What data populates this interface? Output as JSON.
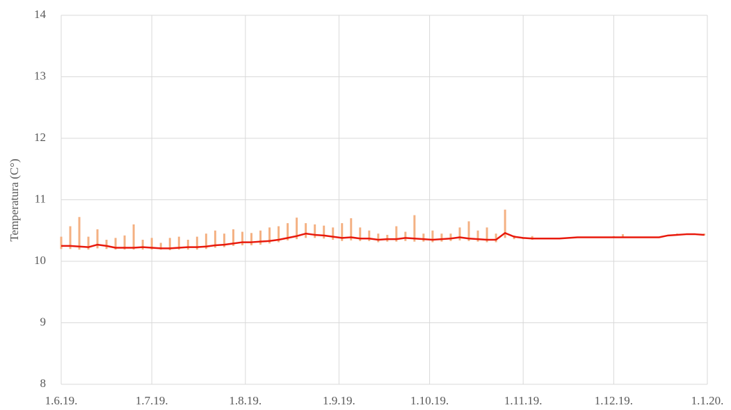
{
  "chart_data": {
    "type": "line",
    "y_label": "Temperatura (C°)",
    "x": [
      "2019-06-01",
      "2019-06-04",
      "2019-06-07",
      "2019-06-10",
      "2019-06-13",
      "2019-06-16",
      "2019-06-19",
      "2019-06-22",
      "2019-06-25",
      "2019-06-28",
      "2019-07-01",
      "2019-07-04",
      "2019-07-07",
      "2019-07-10",
      "2019-07-13",
      "2019-07-16",
      "2019-07-19",
      "2019-07-22",
      "2019-07-25",
      "2019-07-28",
      "2019-07-31",
      "2019-08-03",
      "2019-08-06",
      "2019-08-09",
      "2019-08-12",
      "2019-08-15",
      "2019-08-18",
      "2019-08-21",
      "2019-08-24",
      "2019-08-27",
      "2019-08-30",
      "2019-09-02",
      "2019-09-05",
      "2019-09-08",
      "2019-09-11",
      "2019-09-14",
      "2019-09-17",
      "2019-09-20",
      "2019-09-23",
      "2019-09-26",
      "2019-09-29",
      "2019-10-02",
      "2019-10-05",
      "2019-10-08",
      "2019-10-11",
      "2019-10-14",
      "2019-10-17",
      "2019-10-20",
      "2019-10-23",
      "2019-10-26",
      "2019-10-29",
      "2019-11-01",
      "2019-11-04",
      "2019-11-07",
      "2019-11-10",
      "2019-11-13",
      "2019-11-16",
      "2019-11-19",
      "2019-11-22",
      "2019-11-25",
      "2019-11-28",
      "2019-12-01",
      "2019-12-04",
      "2019-12-07",
      "2019-12-10",
      "2019-12-13",
      "2019-12-16",
      "2019-12-19",
      "2019-12-22",
      "2019-12-25",
      "2019-12-28",
      "2019-12-31"
    ],
    "values": [
      10.25,
      10.25,
      10.24,
      10.23,
      10.27,
      10.25,
      10.22,
      10.22,
      10.22,
      10.23,
      10.22,
      10.21,
      10.21,
      10.22,
      10.23,
      10.23,
      10.24,
      10.26,
      10.27,
      10.29,
      10.31,
      10.31,
      10.32,
      10.33,
      10.35,
      10.38,
      10.41,
      10.45,
      10.43,
      10.42,
      10.4,
      10.38,
      10.39,
      10.37,
      10.37,
      10.35,
      10.36,
      10.36,
      10.38,
      10.37,
      10.36,
      10.35,
      10.36,
      10.37,
      10.39,
      10.37,
      10.36,
      10.35,
      10.35,
      10.46,
      10.4,
      10.38,
      10.37,
      10.37,
      10.37,
      10.37,
      10.38,
      10.39,
      10.39,
      10.39,
      10.39,
      10.39,
      10.39,
      10.39,
      10.39,
      10.39,
      10.39,
      10.42,
      10.43,
      10.44,
      10.44,
      10.43
    ],
    "color": "#e8190c",
    "range_low": [
      10.2,
      10.2,
      10.19,
      10.19,
      10.21,
      10.2,
      10.19,
      10.19,
      10.19,
      10.19,
      10.19,
      10.19,
      10.18,
      10.19,
      10.19,
      10.19,
      10.2,
      10.22,
      10.23,
      10.25,
      10.26,
      10.26,
      10.27,
      10.29,
      10.31,
      10.34,
      10.36,
      10.38,
      10.38,
      10.37,
      10.35,
      10.33,
      10.34,
      10.33,
      10.33,
      10.31,
      10.32,
      10.32,
      10.33,
      10.32,
      10.32,
      10.31,
      10.32,
      10.33,
      10.34,
      10.33,
      10.32,
      10.31,
      10.31,
      10.38,
      10.36,
      10.36,
      10.35,
      10.36,
      10.36,
      10.36,
      10.37,
      10.38,
      10.38,
      10.38,
      10.38,
      10.38,
      10.38,
      10.38,
      10.38,
      10.38,
      10.38,
      10.41,
      10.42,
      10.43,
      10.43,
      10.42
    ],
    "range_high": [
      10.4,
      10.57,
      10.72,
      10.4,
      10.52,
      10.35,
      10.38,
      10.42,
      10.6,
      10.35,
      10.38,
      10.3,
      10.38,
      10.4,
      10.35,
      10.4,
      10.45,
      10.5,
      10.45,
      10.52,
      10.48,
      10.46,
      10.5,
      10.55,
      10.57,
      10.62,
      10.71,
      10.62,
      10.6,
      10.58,
      10.55,
      10.62,
      10.7,
      10.55,
      10.5,
      10.45,
      10.43,
      10.57,
      10.48,
      10.75,
      10.45,
      10.5,
      10.45,
      10.45,
      10.55,
      10.65,
      10.5,
      10.55,
      10.45,
      10.84,
      10.42,
      10.39,
      10.41,
      10.38,
      10.38,
      10.38,
      10.39,
      10.4,
      10.4,
      10.4,
      10.4,
      10.41,
      10.44,
      10.4,
      10.4,
      10.4,
      10.4,
      10.43,
      10.45,
      10.45,
      10.45,
      10.45
    ],
    "range_color": "#f4b183",
    "xlim": [
      "2019-06-01",
      "2020-01-01"
    ],
    "xticks": [
      {
        "value": "2019-06-01",
        "label": "1.6.19."
      },
      {
        "value": "2019-07-01",
        "label": "1.7.19."
      },
      {
        "value": "2019-08-01",
        "label": "1.8.19."
      },
      {
        "value": "2019-09-01",
        "label": "1.9.19."
      },
      {
        "value": "2019-10-01",
        "label": "1.10.19."
      },
      {
        "value": "2019-11-01",
        "label": "1.11.19."
      },
      {
        "value": "2019-12-01",
        "label": "1.12.19."
      },
      {
        "value": "2020-01-01",
        "label": "1.1.20."
      }
    ],
    "ylim": [
      8,
      14
    ],
    "yticks": [
      8,
      9,
      10,
      11,
      12,
      13,
      14
    ],
    "grid": true
  }
}
